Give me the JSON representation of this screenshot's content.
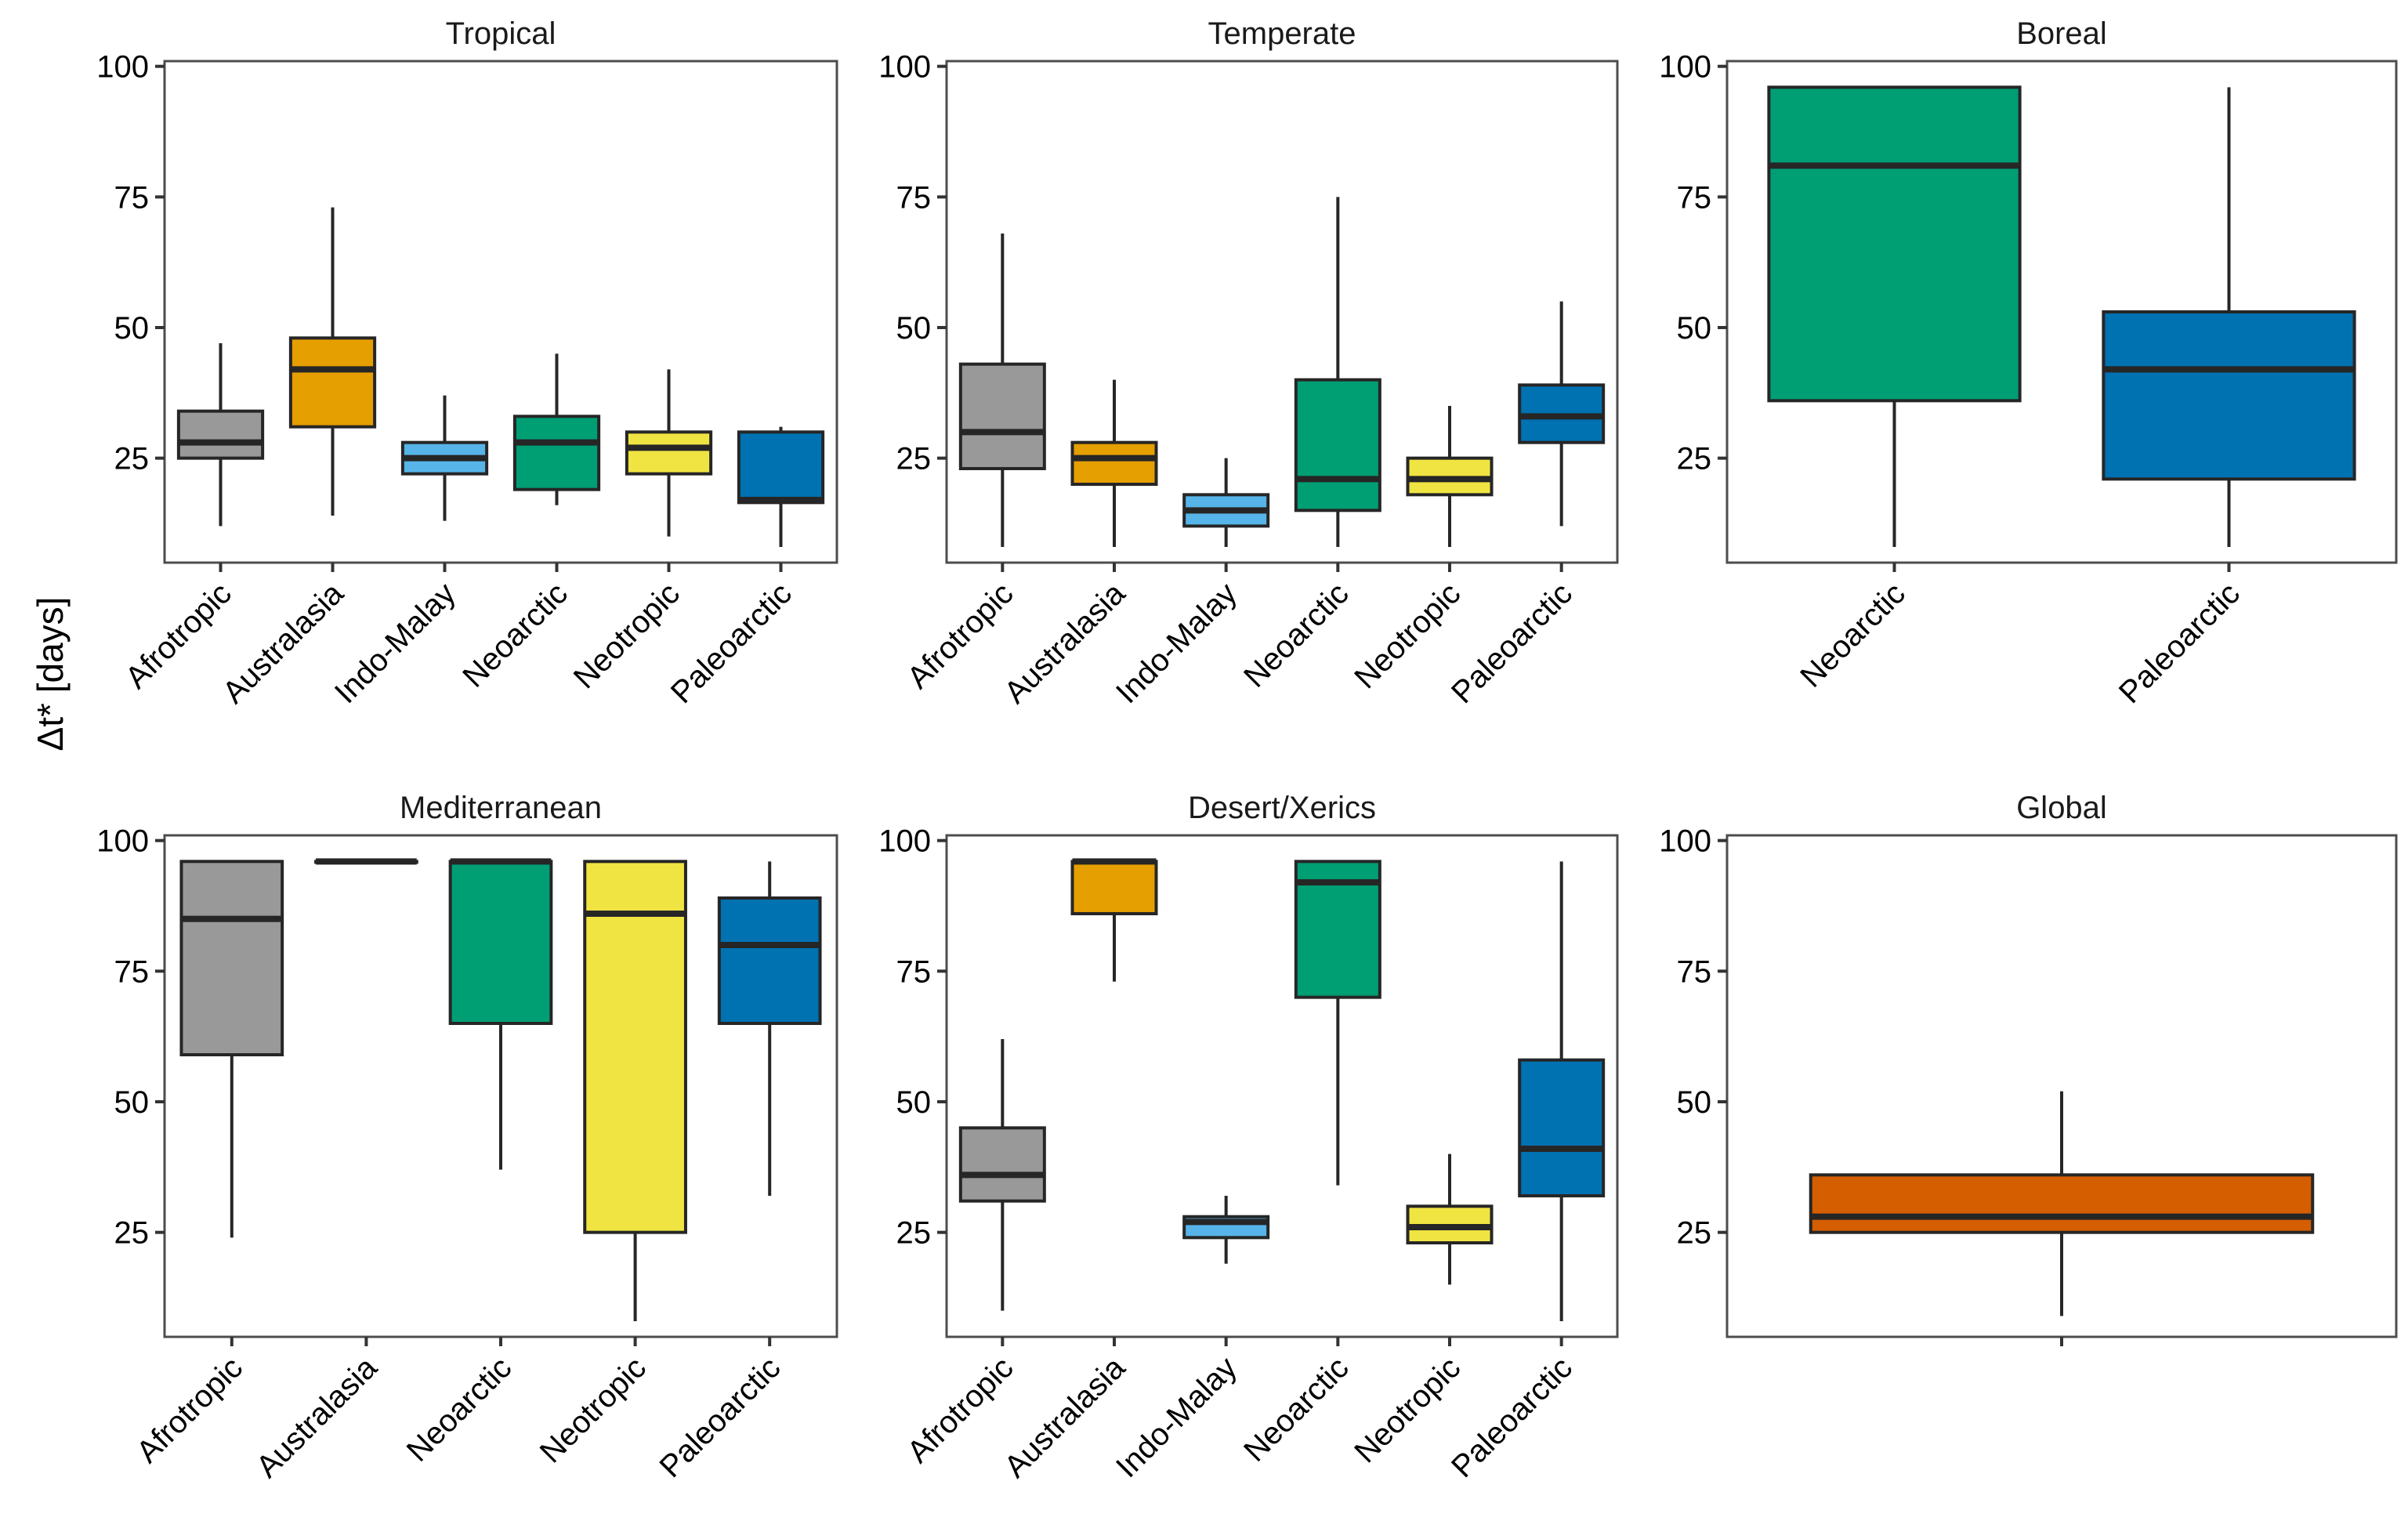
{
  "ylabel": "Δt* [days]",
  "colors": {
    "Afrotropic": "#999999",
    "Australasia": "#E69F00",
    "Indo-Malay": "#56B4E9",
    "Neoarctic": "#009E73",
    "Neotropic": "#F0E442",
    "Paleoarctic": "#0072B2",
    "Global": "#D55E00"
  },
  "chart_data": [
    {
      "type": "boxplot",
      "title": "Tropical",
      "ylim": [
        5,
        101
      ],
      "yticks": [
        25,
        50,
        75,
        100
      ],
      "categories": [
        "Afrotropic",
        "Australasia",
        "Indo-Malay",
        "Neoarctic",
        "Neotropic",
        "Paleoarctic"
      ],
      "boxes": [
        {
          "category": "Afrotropic",
          "min": 12,
          "q1": 25,
          "median": 28,
          "q3": 34,
          "max": 47
        },
        {
          "category": "Australasia",
          "min": 14,
          "q1": 31,
          "median": 42,
          "q3": 48,
          "max": 73
        },
        {
          "category": "Indo-Malay",
          "min": 13,
          "q1": 22,
          "median": 25,
          "q3": 28,
          "max": 37
        },
        {
          "category": "Neoarctic",
          "min": 16,
          "q1": 19,
          "median": 28,
          "q3": 33,
          "max": 45
        },
        {
          "category": "Neotropic",
          "min": 10,
          "q1": 22,
          "median": 27,
          "q3": 30,
          "max": 42
        },
        {
          "category": "Paleoarctic",
          "min": 8,
          "q1": 16.5,
          "median": 17,
          "q3": 30,
          "max": 31
        }
      ]
    },
    {
      "type": "boxplot",
      "title": "Temperate",
      "ylim": [
        5,
        101
      ],
      "yticks": [
        25,
        50,
        75,
        100
      ],
      "categories": [
        "Afrotropic",
        "Australasia",
        "Indo-Malay",
        "Neoarctic",
        "Neotropic",
        "Paleoarctic"
      ],
      "boxes": [
        {
          "category": "Afrotropic",
          "min": 8,
          "q1": 23,
          "median": 30,
          "q3": 43,
          "max": 68
        },
        {
          "category": "Australasia",
          "min": 8,
          "q1": 20,
          "median": 25,
          "q3": 28,
          "max": 40
        },
        {
          "category": "Indo-Malay",
          "min": 8,
          "q1": 12,
          "median": 15,
          "q3": 18,
          "max": 25
        },
        {
          "category": "Neoarctic",
          "min": 8,
          "q1": 15,
          "median": 21,
          "q3": 40,
          "max": 75
        },
        {
          "category": "Neotropic",
          "min": 8,
          "q1": 18,
          "median": 21,
          "q3": 25,
          "max": 35
        },
        {
          "category": "Paleoarctic",
          "min": 12,
          "q1": 28,
          "median": 33,
          "q3": 39,
          "max": 55
        }
      ]
    },
    {
      "type": "boxplot",
      "title": "Boreal",
      "ylim": [
        5,
        101
      ],
      "yticks": [
        25,
        50,
        75,
        100
      ],
      "categories": [
        "Neoarctic",
        "Paleoarctic"
      ],
      "boxes": [
        {
          "category": "Neoarctic",
          "min": 8,
          "q1": 36,
          "median": 81,
          "q3": 96,
          "max": 96
        },
        {
          "category": "Paleoarctic",
          "min": 8,
          "q1": 21,
          "median": 42,
          "q3": 53,
          "max": 96
        }
      ]
    },
    {
      "type": "boxplot",
      "title": "Mediterranean",
      "ylim": [
        5,
        101
      ],
      "yticks": [
        25,
        50,
        75,
        100
      ],
      "categories": [
        "Afrotropic",
        "Australasia",
        "Neoarctic",
        "Neotropic",
        "Paleoarctic"
      ],
      "boxes": [
        {
          "category": "Afrotropic",
          "min": 24,
          "q1": 59,
          "median": 85,
          "q3": 96,
          "max": 96
        },
        {
          "category": "Australasia",
          "min": 96,
          "q1": 96,
          "median": 96,
          "q3": 96,
          "max": 96
        },
        {
          "category": "Neoarctic",
          "min": 37,
          "q1": 65,
          "median": 96,
          "q3": 96,
          "max": 96
        },
        {
          "category": "Neotropic",
          "min": 8,
          "q1": 25,
          "median": 86,
          "q3": 96,
          "max": 96
        },
        {
          "category": "Paleoarctic",
          "min": 32,
          "q1": 65,
          "median": 80,
          "q3": 89,
          "max": 96
        }
      ]
    },
    {
      "type": "boxplot",
      "title": "Desert/Xerics",
      "ylim": [
        5,
        101
      ],
      "yticks": [
        25,
        50,
        75,
        100
      ],
      "categories": [
        "Afrotropic",
        "Australasia",
        "Indo-Malay",
        "Neoarctic",
        "Neotropic",
        "Paleoarctic"
      ],
      "boxes": [
        {
          "category": "Afrotropic",
          "min": 10,
          "q1": 31,
          "median": 36,
          "q3": 45,
          "max": 62
        },
        {
          "category": "Australasia",
          "min": 73,
          "q1": 86,
          "median": 96,
          "q3": 96,
          "max": 96
        },
        {
          "category": "Indo-Malay",
          "min": 19,
          "q1": 24,
          "median": 27,
          "q3": 28,
          "max": 32
        },
        {
          "category": "Neoarctic",
          "min": 34,
          "q1": 70,
          "median": 92,
          "q3": 96,
          "max": 96
        },
        {
          "category": "Neotropic",
          "min": 15,
          "q1": 23,
          "median": 26,
          "q3": 30,
          "max": 40
        },
        {
          "category": "Paleoarctic",
          "min": 8,
          "q1": 32,
          "median": 41,
          "q3": 58,
          "max": 96
        }
      ]
    },
    {
      "type": "boxplot",
      "title": "Global",
      "ylim": [
        5,
        101
      ],
      "yticks": [
        25,
        50,
        75,
        100
      ],
      "categories": [
        ""
      ],
      "boxes": [
        {
          "category": "Global",
          "min": 9,
          "q1": 25,
          "median": 28,
          "q3": 36,
          "max": 52
        }
      ]
    }
  ]
}
